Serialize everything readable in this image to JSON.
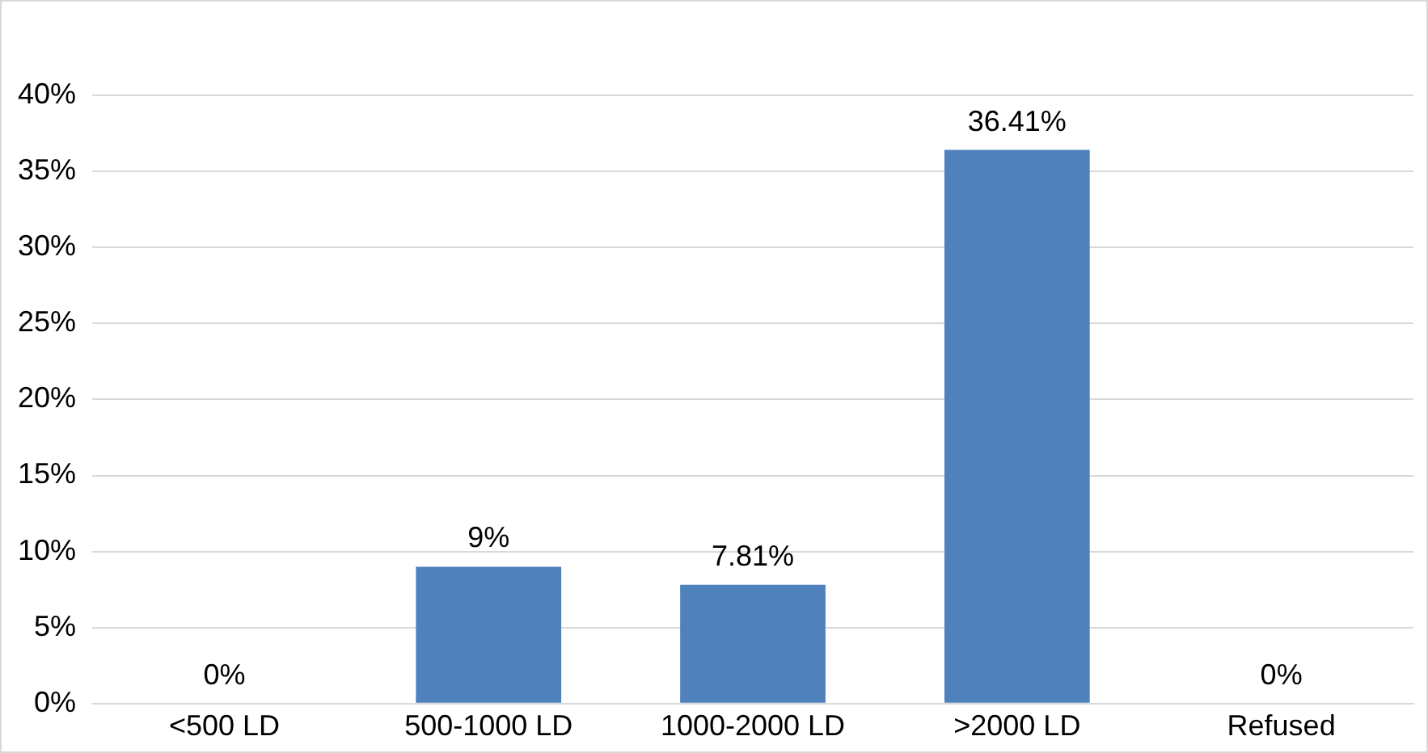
{
  "chart_data": {
    "type": "bar",
    "categories": [
      "<500 LD",
      "500-1000 LD",
      "1000-2000 LD",
      ">2000 LD",
      "Refused"
    ],
    "values": [
      0,
      9,
      7.81,
      36.41,
      0
    ],
    "value_labels": [
      "0%",
      "9%",
      "7.81%",
      "36.41%",
      "0%"
    ],
    "color": "#4f81bd",
    "ylim": [
      0,
      40
    ],
    "yticks": [
      {
        "value": 0,
        "label": "0%"
      },
      {
        "value": 5,
        "label": "5%"
      },
      {
        "value": 10,
        "label": "10%"
      },
      {
        "value": 15,
        "label": "15%"
      },
      {
        "value": 20,
        "label": "20%"
      },
      {
        "value": 25,
        "label": "25%"
      },
      {
        "value": 30,
        "label": "30%"
      },
      {
        "value": 35,
        "label": "35%"
      },
      {
        "value": 40,
        "label": "40%"
      }
    ],
    "grid": "y"
  }
}
